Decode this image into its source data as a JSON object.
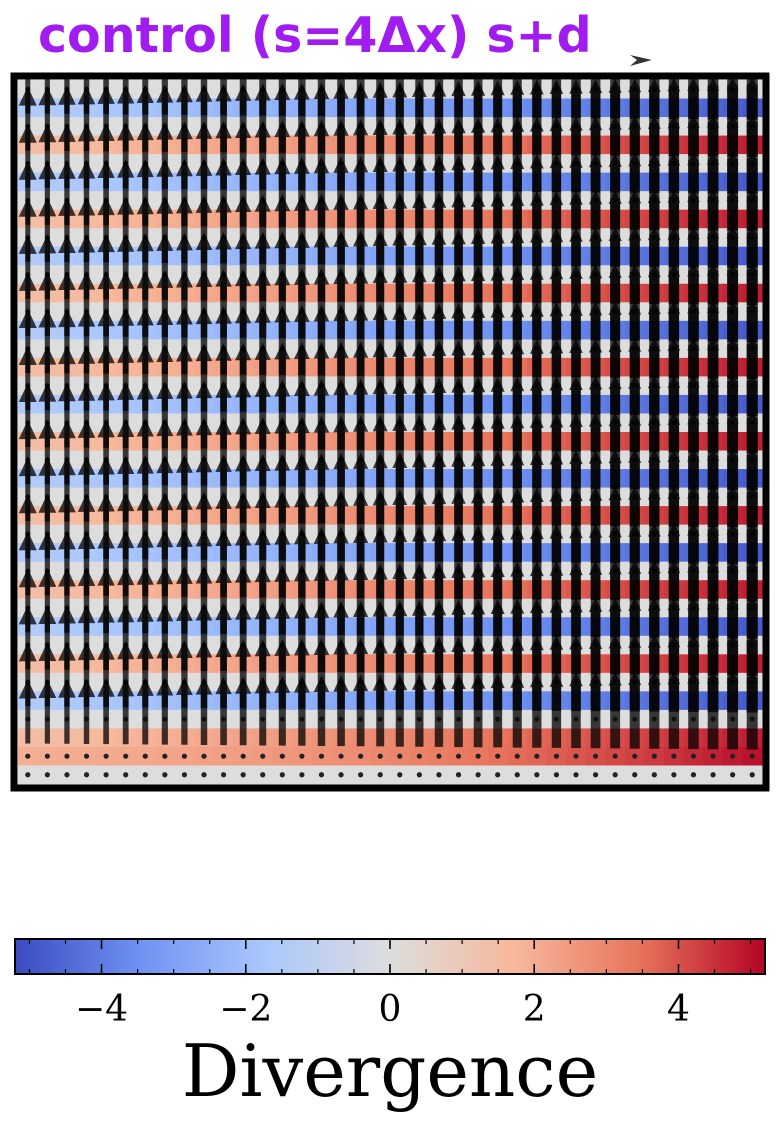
{
  "chart_data": {
    "type": "heatmap",
    "title": "control (s=4Δx) s+d",
    "subtype": "quiver field over divergence heatmap",
    "grid": {
      "columns": 38,
      "rows": 38
    },
    "vector_field": {
      "description": "upward-pointing arrows in alternating rows, magnitude growing from left to right; bottom two rows are point markers",
      "bottom_marker_rows": 2,
      "arrow_color": "#000000",
      "arrow_opacity": 0.75
    },
    "divergence_pattern": {
      "cycle": [
        "gray",
        "blue",
        "gray",
        "red"
      ],
      "left_abs_value": 1.5,
      "right_abs_value": 4.8,
      "bottom_rows": [
        {
          "left": 2.0,
          "right": 5.0
        },
        {
          "left": 0.0,
          "right": 0.0
        }
      ]
    },
    "colorbar": {
      "label": "Divergence",
      "vmin": -5.2,
      "vmax": 5.2,
      "ticks": [
        -4,
        -2,
        0,
        2,
        4
      ],
      "tick_labels": [
        "−4",
        "−2",
        "0",
        "2",
        "4"
      ],
      "colormap": "coolwarm",
      "colormap_stops": [
        "#3b4cc0",
        "#6f92f3",
        "#aac7fd",
        "#dddddd",
        "#f7b89c",
        "#e7745b",
        "#b40426"
      ]
    },
    "legend": {
      "marker": "quiver key arrow",
      "placement": "top-right"
    }
  }
}
